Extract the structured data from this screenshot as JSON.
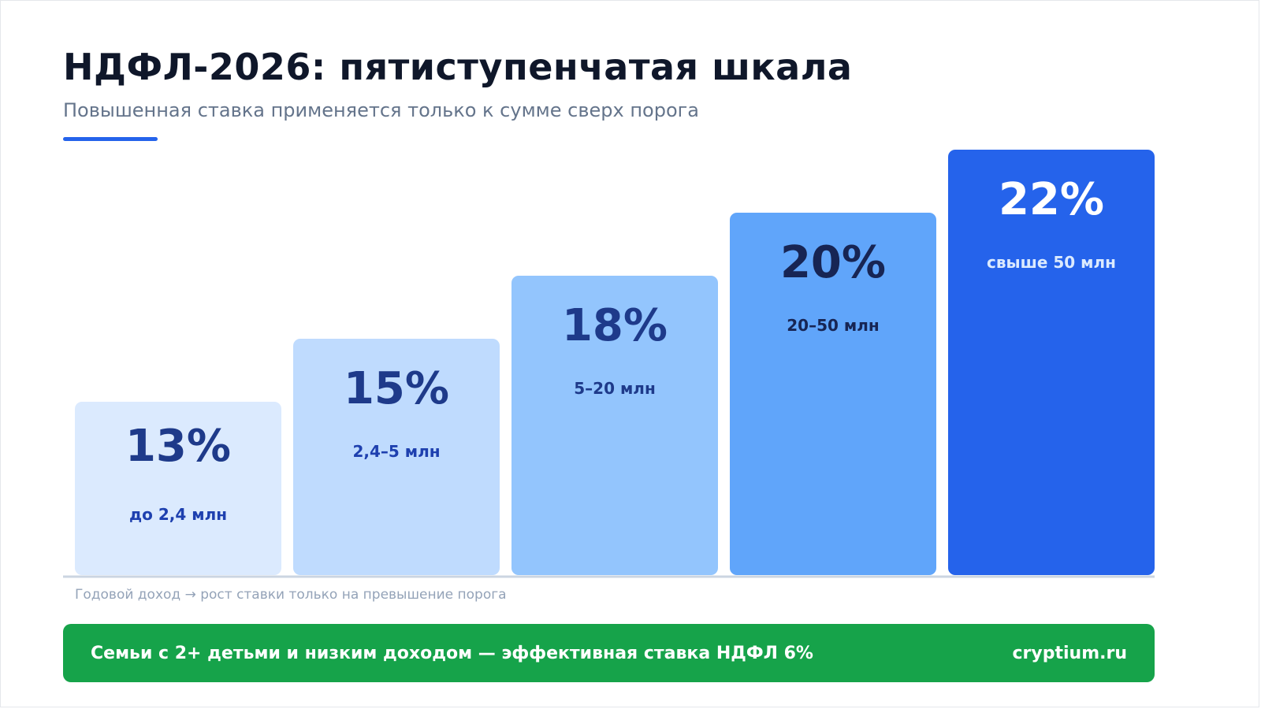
{
  "header": {
    "title": "НДФЛ-2026: пятиступенчатая шкала",
    "subtitle": "Повышенная ставка применяется только к сумме сверх порога"
  },
  "colors": {
    "accent": "#2563eb",
    "banner": "#16a34a",
    "baseline": "#cbd5e1"
  },
  "chart_data": {
    "type": "bar",
    "categories": [
      "до 2,4 млн",
      "2,4–5 млн",
      "5–20 млн",
      "20–50 млн",
      "свыше 50 млн"
    ],
    "value_labels": [
      "13%",
      "15%",
      "18%",
      "20%",
      "22%"
    ],
    "values": [
      13,
      15,
      18,
      20,
      22
    ],
    "unit": "%",
    "bar_colors": [
      "#dbeafe",
      "#bfdbfe",
      "#93c5fd",
      "#60a5fa",
      "#2563eb"
    ],
    "value_text_colors": [
      "#1e3a8a",
      "#1e3a8a",
      "#1e3a8a",
      "#172554",
      "#ffffff"
    ],
    "category_text_colors": [
      "#1e40af",
      "#1e40af",
      "#1e3a8a",
      "#172554",
      "#dbeafe"
    ],
    "axis_note": "Годовой доход → рост ставки только на превышение порога",
    "grid": false
  },
  "banner": {
    "text": "Семьи с 2+ детьми и низким доходом — эффективная ставка НДФЛ 6%",
    "site": "cryptium.ru"
  }
}
